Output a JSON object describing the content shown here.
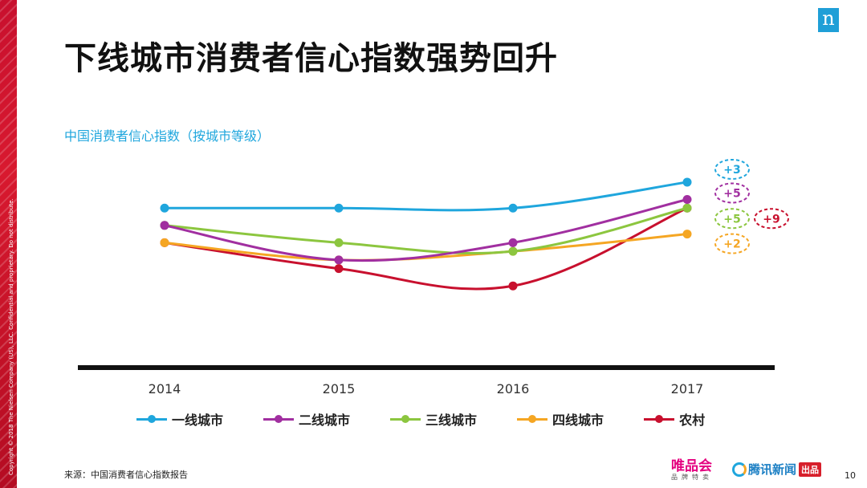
{
  "slide": {
    "title": "下线城市消费者信心指数强势回升",
    "copyright": "Copyright © 2018 The Nielsen Company (US), LLC. Confidential and proprietary. Do not distribute.",
    "brand_mark": "n",
    "source": "来源：中国消费者信心指数报告",
    "page_number": "10",
    "footer_logos": {
      "vip_main": "唯品会",
      "vip_sub": "品牌特卖",
      "qq_text": "腾讯新闻",
      "qq_tag": "出品"
    }
  },
  "chart_data": {
    "type": "line",
    "title": "中国消费者信心指数（按城市等级）",
    "xlabel": "",
    "ylabel": "",
    "categories": [
      "2014",
      "2015",
      "2016",
      "2017"
    ],
    "ylim": [
      90,
      125
    ],
    "series": [
      {
        "name": "一线城市",
        "color": "#1fa6dd",
        "values": [
          113,
          113,
          113,
          116
        ],
        "change": "+3"
      },
      {
        "name": "二线城市",
        "color": "#a12fa0",
        "values": [
          111,
          107,
          109,
          114
        ],
        "change": "+5"
      },
      {
        "name": "三线城市",
        "color": "#8cc63f",
        "values": [
          111,
          109,
          108,
          113
        ],
        "change": "+5"
      },
      {
        "name": "四线城市",
        "color": "#f5a623",
        "values": [
          109,
          107,
          108,
          110
        ],
        "change": "+2"
      },
      {
        "name": "农村",
        "color": "#c8102e",
        "values": [
          109,
          106,
          104,
          113
        ],
        "change": "+9"
      }
    ],
    "grid": false,
    "legend_position": "bottom"
  }
}
